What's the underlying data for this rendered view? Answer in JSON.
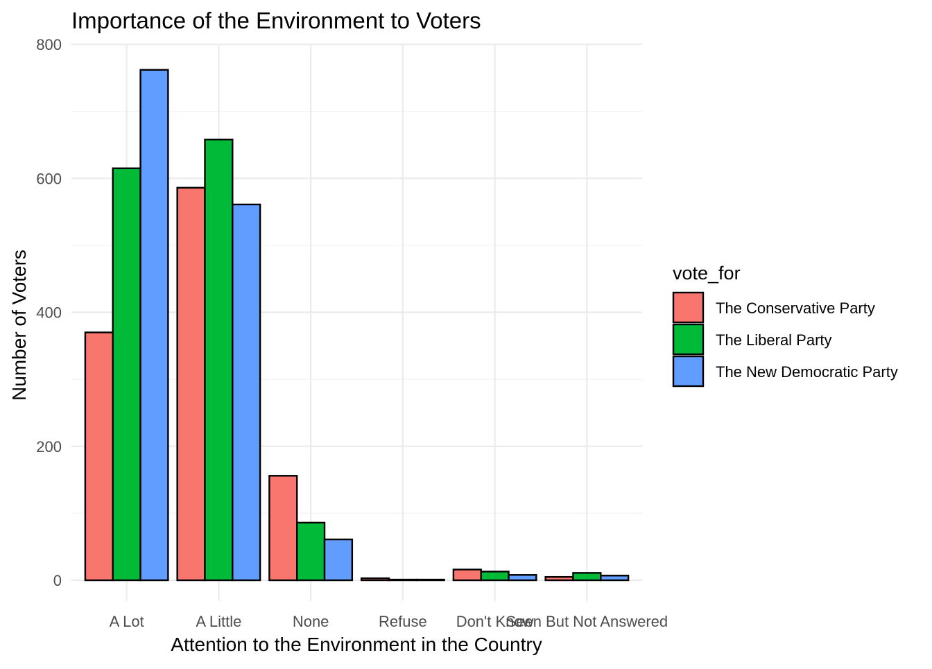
{
  "chart_data": {
    "type": "bar",
    "title": "Importance of the Environment to Voters",
    "xlabel": "Attention to the Environment in the Country",
    "ylabel": "Number of Voters",
    "categories": [
      "A Lot",
      "A Little",
      "None",
      "Refuse",
      "Don't Know",
      "Seen But Not Answered"
    ],
    "ylim": [
      -30,
      800
    ],
    "yticks": [
      0,
      200,
      400,
      600,
      800
    ],
    "grid": true,
    "legend": {
      "title": "vote_for",
      "position": "right"
    },
    "series": [
      {
        "name": "The Conservative Party",
        "color": "#F8766D",
        "values": [
          370,
          586,
          156,
          3,
          16,
          5
        ]
      },
      {
        "name": "The Liberal Party",
        "color": "#00BA38",
        "values": [
          615,
          658,
          86,
          1,
          13,
          11
        ]
      },
      {
        "name": "The New Democratic Party",
        "color": "#619CFF",
        "values": [
          762,
          561,
          61,
          1,
          8,
          7
        ]
      }
    ]
  }
}
